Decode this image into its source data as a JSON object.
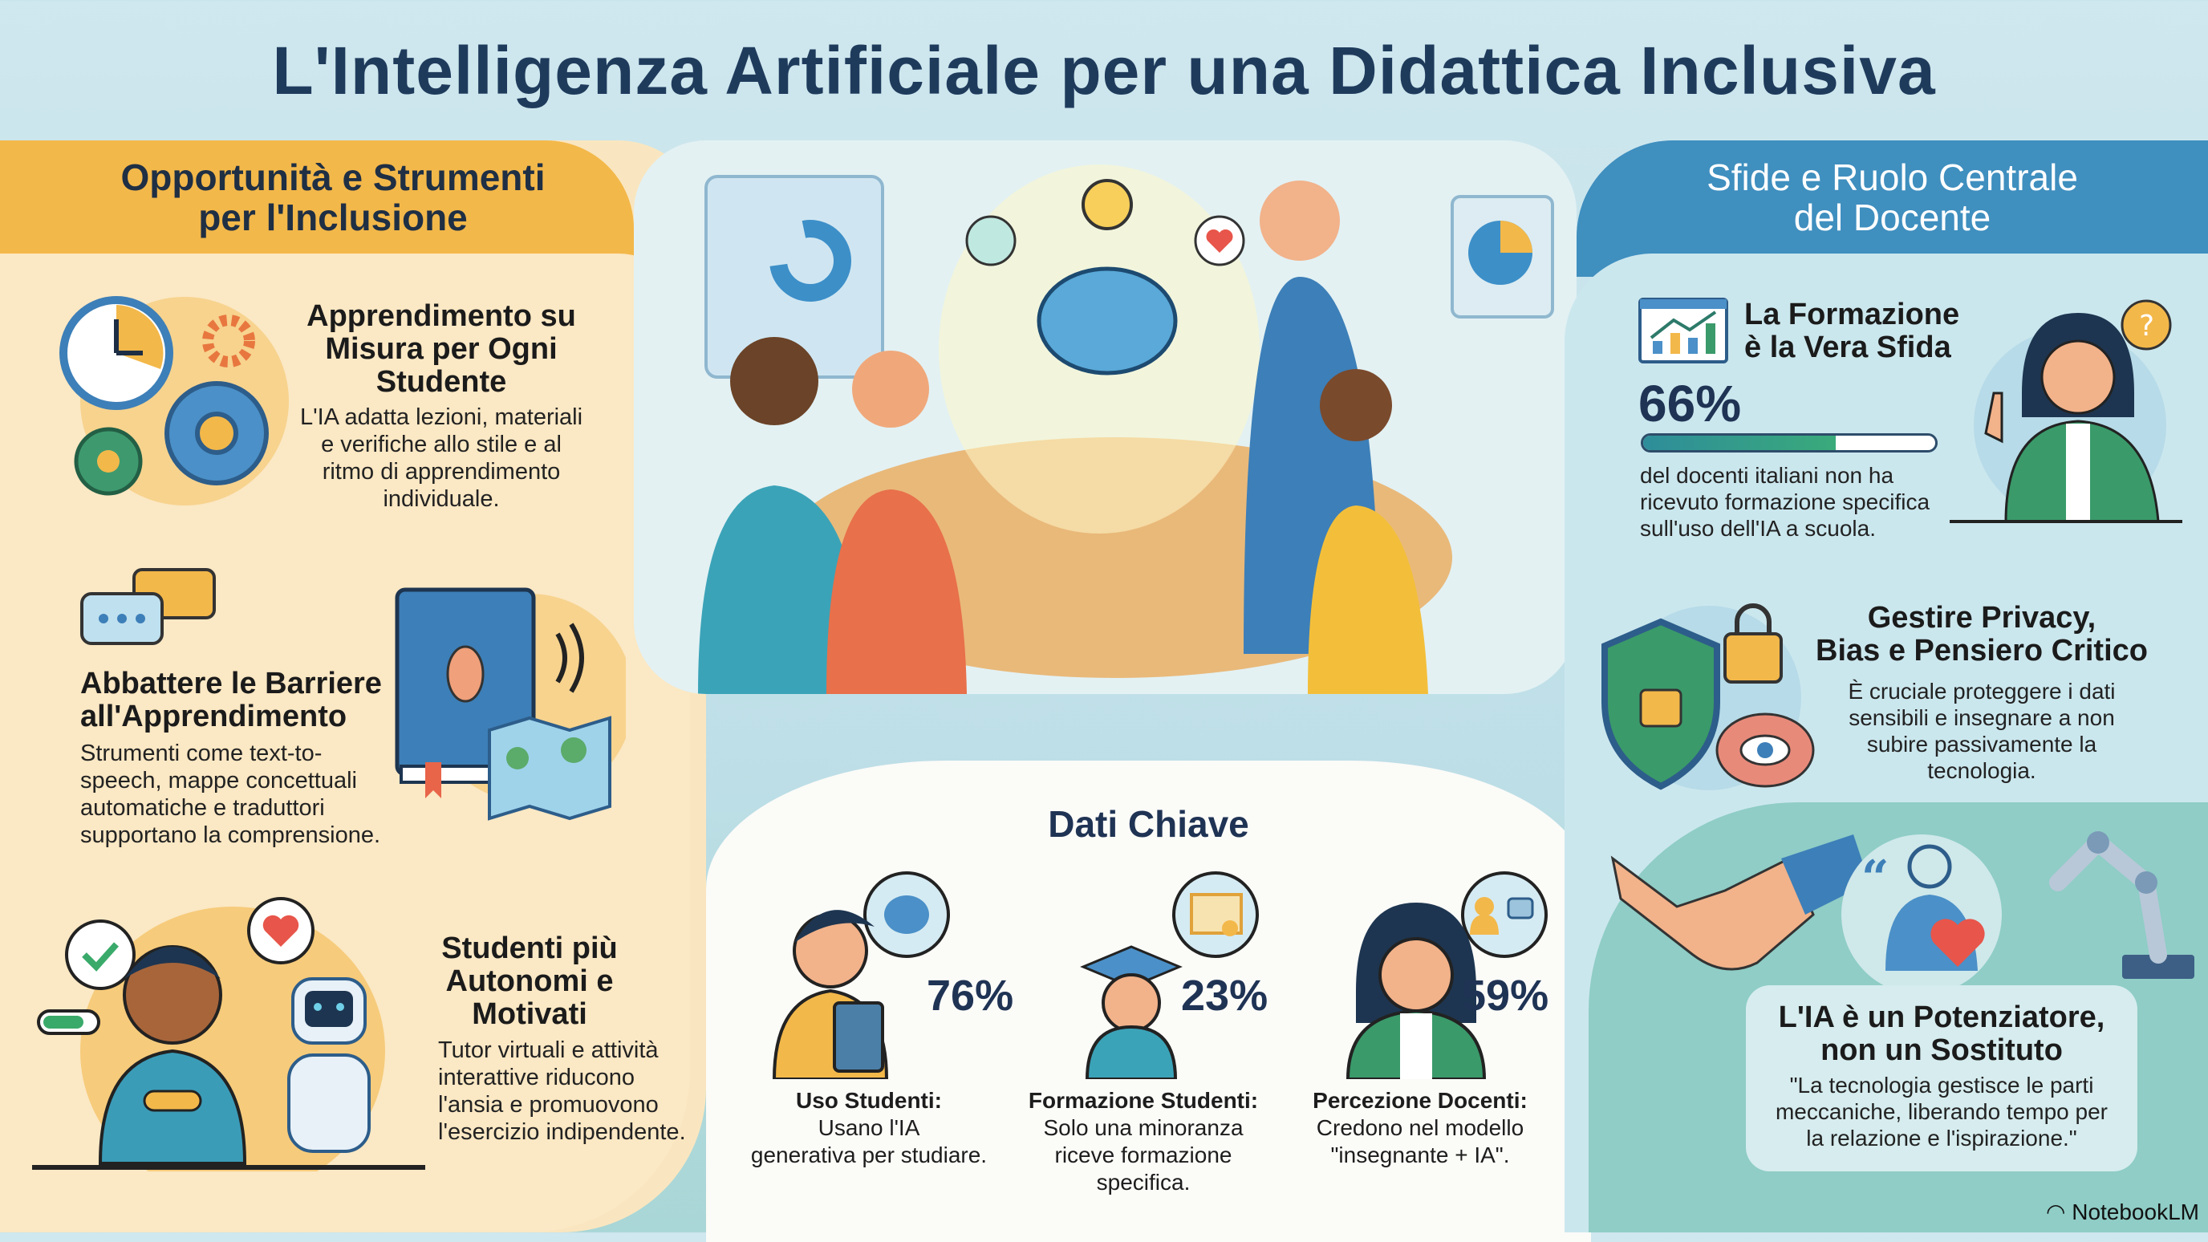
{
  "title": "L'Intelligenza Artificiale per una Didattica Inclusiva",
  "left": {
    "heading": [
      "Opportunità e Strumenti",
      "per l'Inclusione"
    ],
    "sections": [
      {
        "title": [
          "Apprendimento su",
          "Misura per Ogni",
          "Studente"
        ],
        "body": [
          "L'IA adatta lezioni, materiali",
          "e verifiche allo stile e al",
          "ritmo di apprendimento",
          "individuale."
        ],
        "icon": "clock-gears-icon"
      },
      {
        "title": [
          "Abbattere le Barriere",
          "all'Apprendimento"
        ],
        "body": [
          "Strumenti come text-to-",
          "speech, mappe concettuali",
          "automatiche e traduttori",
          "supportano la comprensione."
        ],
        "icon": "book-ear-map-icon"
      },
      {
        "title": [
          "Studenti più",
          "Autonomi e",
          "Motivati"
        ],
        "body": [
          "Tutor virtuali e attività",
          "interattive riducono",
          "l'ansia e promuovono",
          "l'esercizio indipendente."
        ],
        "icon": "student-robot-icon"
      }
    ]
  },
  "right": {
    "heading": [
      "Sfide e Ruolo Centrale",
      "del Docente"
    ],
    "formazione": {
      "title": [
        "La Formazione",
        "è la Vera Sfida"
      ],
      "value": "66%",
      "progress": 0.66,
      "body": [
        "del docenti italiani non ha",
        "ricevuto formazione specifica",
        "sull'uso dell'IA a scuola."
      ]
    },
    "privacy": {
      "title": [
        "Gestire Privacy,",
        "Bias e Pensiero Critico"
      ],
      "body": [
        "È cruciale proteggere i dati",
        "sensibili e insegnare a non",
        "subire passivamente la",
        "tecnologia."
      ]
    },
    "potenziatore": {
      "title": [
        "L'IA è un Potenziatore,",
        "non un Sostituto"
      ],
      "body": [
        "\"La tecnologia gestisce le parti",
        "meccaniche, liberando tempo per",
        "la relazione e l'ispirazione.\""
      ]
    }
  },
  "dati": {
    "title": "Dati Chiave",
    "items": [
      {
        "value": "76%",
        "label": "Uso Studenti:",
        "body": [
          "Usano l'IA",
          "generativa per studiare."
        ]
      },
      {
        "value": "23%",
        "label": "Formazione Studenti:",
        "body": [
          "Solo una minoranza",
          "riceve formazione",
          "specifica."
        ]
      },
      {
        "value": "59%",
        "label": "Percezione Docenti:",
        "body": [
          "Credono nel modello",
          "\"insegnante + IA\"."
        ]
      }
    ]
  },
  "branding": "NotebookLM",
  "colors": {
    "title": "#1f3b5c",
    "left_accent": "#f3b84a",
    "right_accent": "#3f8fbf",
    "teal": "#8fcdc6",
    "progress": "#3aaa7a"
  }
}
